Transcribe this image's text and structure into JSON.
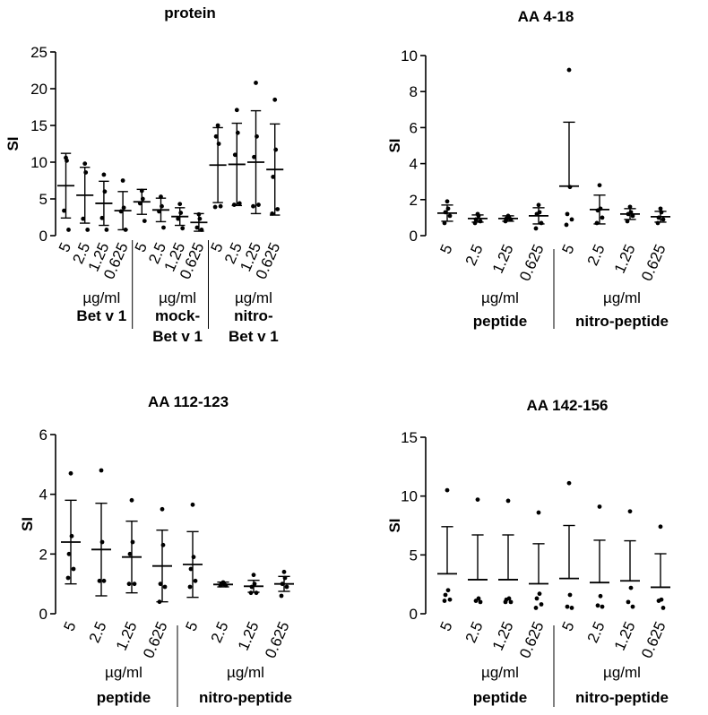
{
  "chart_data": [
    {
      "type": "scatter",
      "title": "protein",
      "ylabel": "SI",
      "ylim": [
        0,
        25
      ],
      "yticks": [
        0,
        5,
        10,
        15,
        20,
        25
      ],
      "categories": [
        "5",
        "2.5",
        "1.25",
        "0.625",
        "5",
        "2.5",
        "1.25",
        "0.625",
        "5",
        "2.5",
        "1.25",
        "0.625"
      ],
      "groups": [
        {
          "unit": "µg/ml",
          "lines": [
            "Bet v 1"
          ]
        },
        {
          "unit": "µg/ml",
          "lines": [
            "mock-",
            "Bet v 1"
          ]
        },
        {
          "unit": "µg/ml",
          "lines": [
            "nitro-",
            "Bet v 1"
          ]
        }
      ],
      "series": [
        {
          "mean": 6.8,
          "err": 4.4,
          "points": [
            10.6,
            10.2,
            3.4,
            0.8
          ]
        },
        {
          "mean": 5.5,
          "err": 3.8,
          "points": [
            9.8,
            8.6,
            2.3,
            0.8
          ]
        },
        {
          "mean": 4.4,
          "err": 3.0,
          "points": [
            8.3,
            6.0,
            2.4,
            0.8
          ]
        },
        {
          "mean": 3.4,
          "err": 2.6,
          "points": [
            7.5,
            3.8,
            3.3,
            0.8
          ]
        },
        {
          "mean": 4.6,
          "err": 1.7,
          "points": [
            6.1,
            5.0,
            4.4,
            2.0
          ]
        },
        {
          "mean": 3.5,
          "err": 1.6,
          "points": [
            5.3,
            4.0,
            3.3,
            1.1
          ]
        },
        {
          "mean": 2.6,
          "err": 1.2,
          "points": [
            4.3,
            3.1,
            2.3,
            1.0
          ]
        },
        {
          "mean": 1.8,
          "err": 1.2,
          "points": [
            2.9,
            2.3,
            1.1,
            0.8
          ]
        },
        {
          "mean": 9.6,
          "err": 5.1,
          "points": [
            15.0,
            12.5,
            13.5,
            4.0,
            3.9
          ]
        },
        {
          "mean": 9.7,
          "err": 5.6,
          "points": [
            17.1,
            14.0,
            11.0,
            4.4,
            4.2
          ]
        },
        {
          "mean": 10.0,
          "err": 7.0,
          "points": [
            20.8,
            13.5,
            10.7,
            4.2,
            4.0
          ]
        },
        {
          "mean": 9.0,
          "err": 6.2,
          "points": [
            18.5,
            11.7,
            8.0,
            3.6,
            3.0
          ]
        }
      ]
    },
    {
      "type": "scatter",
      "title": "AA 4-18",
      "ylabel": "SI",
      "ylim": [
        0,
        10
      ],
      "yticks": [
        0,
        2,
        4,
        6,
        8,
        10
      ],
      "categories": [
        "5",
        "2.5",
        "1.25",
        "0.625",
        "5",
        "2.5",
        "1.25",
        "0.625"
      ],
      "groups": [
        {
          "unit": "µg/ml",
          "lines": [
            "peptide"
          ]
        },
        {
          "unit": "µg/ml",
          "lines": [
            "nitro-peptide"
          ]
        }
      ],
      "series": [
        {
          "mean": 1.25,
          "err": 0.45,
          "points": [
            1.9,
            1.5,
            1.3,
            1.1,
            0.7
          ]
        },
        {
          "mean": 0.95,
          "err": 0.2,
          "points": [
            1.2,
            1.1,
            0.9,
            0.8,
            0.7
          ]
        },
        {
          "mean": 0.95,
          "err": 0.15,
          "points": [
            1.1,
            1.0,
            0.95,
            0.9,
            0.8
          ]
        },
        {
          "mean": 1.1,
          "err": 0.45,
          "points": [
            1.7,
            1.3,
            1.2,
            0.7,
            0.4
          ]
        },
        {
          "mean": 2.75,
          "err": 3.55,
          "points": [
            9.2,
            2.7,
            1.2,
            0.9,
            0.6
          ]
        },
        {
          "mean": 1.45,
          "err": 0.8,
          "points": [
            2.8,
            1.5,
            1.4,
            1.0,
            0.7
          ]
        },
        {
          "mean": 1.2,
          "err": 0.3,
          "points": [
            1.6,
            1.3,
            1.2,
            1.1,
            0.8
          ]
        },
        {
          "mean": 1.05,
          "err": 0.3,
          "points": [
            1.5,
            1.3,
            1.0,
            0.9,
            0.7
          ]
        }
      ]
    },
    {
      "type": "scatter",
      "title": "AA 112-123",
      "ylabel": "SI",
      "ylim": [
        0,
        6
      ],
      "yticks": [
        0,
        2,
        4,
        6
      ],
      "categories": [
        "5",
        "2.5",
        "1.25",
        "0.625",
        "5",
        "2.5",
        "1.25",
        "0.625"
      ],
      "groups": [
        {
          "unit": "µg/ml",
          "lines": [
            "peptide"
          ]
        },
        {
          "unit": "µg/ml",
          "lines": [
            "nitro-peptide"
          ]
        }
      ],
      "series": [
        {
          "mean": 2.4,
          "err": 1.4,
          "points": [
            4.7,
            2.6,
            2.0,
            1.5,
            1.2
          ]
        },
        {
          "mean": 2.15,
          "err": 1.55,
          "points": [
            4.8,
            2.4,
            1.1,
            1.1
          ]
        },
        {
          "mean": 1.9,
          "err": 1.2,
          "points": [
            3.8,
            2.4,
            2.0,
            1.0,
            1.0
          ]
        },
        {
          "mean": 1.6,
          "err": 1.2,
          "points": [
            3.5,
            2.3,
            1.0,
            0.9,
            0.4
          ]
        },
        {
          "mean": 1.65,
          "err": 1.1,
          "points": [
            3.65,
            1.9,
            1.5,
            1.1,
            0.9
          ]
        },
        {
          "mean": 0.98,
          "err": 0.08,
          "points": [
            1.05,
            1.0,
            1.0,
            0.95,
            0.95
          ]
        },
        {
          "mean": 0.92,
          "err": 0.2,
          "points": [
            1.3,
            1.0,
            0.9,
            0.7,
            0.7
          ]
        },
        {
          "mean": 1.0,
          "err": 0.25,
          "points": [
            1.4,
            1.2,
            1.0,
            0.9,
            0.6
          ]
        }
      ]
    },
    {
      "type": "scatter",
      "title": "AA 142-156",
      "ylabel": "SI",
      "ylim": [
        0,
        15
      ],
      "yticks": [
        0,
        5,
        10,
        15
      ],
      "categories": [
        "5",
        "2.5",
        "1.25",
        "0.625",
        "5",
        "2.5",
        "1.25",
        "0.625"
      ],
      "groups": [
        {
          "unit": "µg/ml",
          "lines": [
            "peptide"
          ]
        },
        {
          "unit": "µg/ml",
          "lines": [
            "nitro-peptide"
          ]
        }
      ],
      "series": [
        {
          "mean": 3.4,
          "err": 4.0,
          "points": [
            10.5,
            2.0,
            1.6,
            1.2,
            1.1
          ]
        },
        {
          "mean": 2.9,
          "err": 3.8,
          "points": [
            9.7,
            1.3,
            1.1,
            1.0
          ]
        },
        {
          "mean": 2.9,
          "err": 3.8,
          "points": [
            9.6,
            1.3,
            1.2,
            1.0,
            1.0
          ]
        },
        {
          "mean": 2.55,
          "err": 3.4,
          "points": [
            8.6,
            1.7,
            1.3,
            0.8,
            0.5
          ]
        },
        {
          "mean": 3.0,
          "err": 4.5,
          "points": [
            11.1,
            1.6,
            0.6,
            0.5
          ]
        },
        {
          "mean": 2.65,
          "err": 3.6,
          "points": [
            9.1,
            1.5,
            0.7,
            0.6
          ]
        },
        {
          "mean": 2.8,
          "err": 3.4,
          "points": [
            8.7,
            2.2,
            1.0,
            0.6
          ]
        },
        {
          "mean": 2.25,
          "err": 2.85,
          "points": [
            7.4,
            1.2,
            1.1,
            0.5
          ]
        }
      ]
    }
  ]
}
